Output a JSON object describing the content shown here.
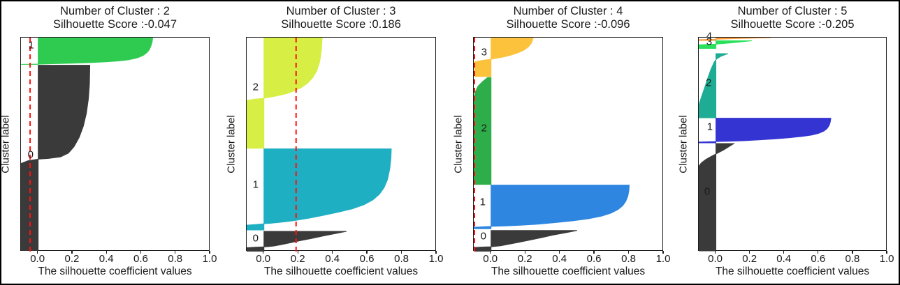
{
  "figure": {
    "background": "#ffffff",
    "frame_color": "#000000",
    "xlabel": "The silhouette coefficient values",
    "ylabel": "Cluster label",
    "xtick_labels": [
      "0.0",
      "0.2",
      "0.4",
      "0.6",
      "0.8",
      "1.0"
    ],
    "xtick_values": [
      0,
      0.2,
      0.4,
      0.6,
      0.8,
      1.0
    ],
    "xlim": [
      -0.1,
      1.0
    ],
    "score_line_color": "#ff1111",
    "text_color": "#1a1a1a"
  },
  "chart_data": [
    {
      "type": "area",
      "title_line1": "Number of Cluster : 2",
      "title_line2": "Silhouette Score :-0.047",
      "n_clusters": 2,
      "silhouette_score": -0.047,
      "score_line": -0.047,
      "clusters": [
        {
          "label": "1",
          "color": "#2ecb50",
          "y_range": [
            0.002,
            0.125
          ],
          "label_pos": {
            "v": -0.037,
            "f": 0.04
          },
          "profile": [
            [
              0.665,
              0
            ],
            [
              0.662,
              0.15
            ],
            [
              0.655,
              0.3
            ],
            [
              0.645,
              0.45
            ],
            [
              0.632,
              0.55
            ],
            [
              0.612,
              0.65
            ],
            [
              0.59,
              0.72
            ],
            [
              0.56,
              0.78
            ],
            [
              0.52,
              0.83
            ],
            [
              0.465,
              0.87
            ],
            [
              0.4,
              0.9
            ],
            [
              0.31,
              0.93
            ],
            [
              0.21,
              0.955
            ],
            [
              0.1,
              0.975
            ],
            [
              0.01,
              0.99
            ],
            [
              -0.05,
              0.995
            ],
            [
              -0.099,
              1
            ]
          ]
        },
        {
          "label": "0",
          "color": "#3a3a3a",
          "y_range": [
            0.129,
            0.995
          ],
          "label_pos": {
            "v": -0.04,
            "f": 0.5505
          },
          "profile": [
            [
              0.3,
              0
            ],
            [
              0.298,
              0.1
            ],
            [
              0.292,
              0.18
            ],
            [
              0.28,
              0.26
            ],
            [
              0.262,
              0.33
            ],
            [
              0.238,
              0.39
            ],
            [
              0.208,
              0.44
            ],
            [
              0.175,
              0.475
            ],
            [
              0.13,
              0.495
            ],
            [
              0.06,
              0.503
            ],
            [
              0,
              0.507
            ],
            [
              -0.06,
              0.516
            ],
            [
              -0.099,
              0.53
            ],
            [
              -0.099,
              1
            ]
          ]
        }
      ]
    },
    {
      "type": "area",
      "title_line1": "Number of Cluster : 3",
      "title_line2": "Silhouette Score :0.186",
      "n_clusters": 3,
      "silhouette_score": 0.186,
      "score_line": 0.186,
      "clusters": [
        {
          "label": "2",
          "color": "#d7ef45",
          "y_range": [
            0.002,
            0.517
          ],
          "label_pos": {
            "v": -0.044,
            "f": 0.2345
          },
          "profile": [
            [
              0.337,
              0
            ],
            [
              0.332,
              0.12
            ],
            [
              0.322,
              0.22
            ],
            [
              0.305,
              0.3
            ],
            [
              0.282,
              0.36
            ],
            [
              0.252,
              0.41
            ],
            [
              0.215,
              0.45
            ],
            [
              0.175,
              0.48
            ],
            [
              0.13,
              0.505
            ],
            [
              0.075,
              0.525
            ],
            [
              0.02,
              0.54
            ],
            [
              0,
              0.546
            ],
            [
              -0.06,
              0.556
            ],
            [
              -0.099,
              0.566
            ],
            [
              -0.099,
              1
            ]
          ]
        },
        {
          "label": "1",
          "color": "#1fafc3",
          "y_range": [
            0.52,
            0.899
          ],
          "label_pos": {
            "v": -0.044,
            "f": 0.6916
          },
          "profile": [
            [
              0.737,
              0
            ],
            [
              0.735,
              0.12
            ],
            [
              0.728,
              0.25
            ],
            [
              0.715,
              0.38
            ],
            [
              0.695,
              0.48
            ],
            [
              0.668,
              0.56
            ],
            [
              0.63,
              0.63
            ],
            [
              0.578,
              0.69
            ],
            [
              0.51,
              0.74
            ],
            [
              0.432,
              0.78
            ],
            [
              0.345,
              0.82
            ],
            [
              0.26,
              0.855
            ],
            [
              0.175,
              0.885
            ],
            [
              0.1,
              0.905
            ],
            [
              0.035,
              0.918
            ],
            [
              0,
              0.924
            ],
            [
              -0.05,
              0.933
            ],
            [
              -0.099,
              0.941
            ],
            [
              -0.099,
              1
            ]
          ]
        },
        {
          "label": "0",
          "color": "#3a3a3a",
          "y_range": [
            0.9055,
            0.9984
          ],
          "label_pos": {
            "v": -0.044,
            "f": 0.9414
          },
          "profile": [
            [
              0.478,
              0
            ],
            [
              0.42,
              0.1
            ],
            [
              0.35,
              0.22
            ],
            [
              0.28,
              0.35
            ],
            [
              0.21,
              0.47
            ],
            [
              0.15,
              0.58
            ],
            [
              0.1,
              0.67
            ],
            [
              0.055,
              0.74
            ],
            [
              0.02,
              0.77
            ],
            [
              0,
              0.782
            ],
            [
              -0.05,
              0.8
            ],
            [
              -0.099,
              0.822
            ],
            [
              -0.099,
              1
            ]
          ]
        }
      ]
    },
    {
      "type": "area",
      "title_line1": "Number of Cluster : 4",
      "title_line2": "Silhouette Score :-0.096",
      "n_clusters": 4,
      "silhouette_score": -0.096,
      "score_line": -0.096,
      "clusters": [
        {
          "label": "3",
          "color": "#fcc23c",
          "y_range": [
            0.002,
            0.1814
          ],
          "label_pos": {
            "v": -0.036,
            "f": 0.0726
          },
          "profile": [
            [
              0.244,
              0
            ],
            [
              0.235,
              0.12
            ],
            [
              0.218,
              0.22
            ],
            [
              0.192,
              0.31
            ],
            [
              0.158,
              0.38
            ],
            [
              0.118,
              0.44
            ],
            [
              0.075,
              0.49
            ],
            [
              0.038,
              0.52
            ],
            [
              0,
              0.552
            ],
            [
              -0.05,
              0.58
            ],
            [
              -0.095,
              0.62
            ],
            [
              -0.095,
              1
            ]
          ]
        },
        {
          "label": "2",
          "color": "#2eae4a",
          "y_range": [
            0.1866,
            0.6862
          ],
          "label_pos": {
            "v": -0.036,
            "f": 0.4257
          },
          "profile": [
            [
              -0.02,
              0
            ],
            [
              -0.05,
              0.04
            ],
            [
              -0.075,
              0.08
            ],
            [
              -0.09,
              0.13
            ],
            [
              -0.099,
              0.18
            ],
            [
              -0.099,
              1
            ]
          ]
        },
        {
          "label": "1",
          "color": "#2e86e0",
          "y_range": [
            0.6895,
            0.8935
          ],
          "label_pos": {
            "v": -0.044,
            "f": 0.773
          },
          "profile": [
            [
              0.8,
              0
            ],
            [
              0.798,
              0.12
            ],
            [
              0.792,
              0.25
            ],
            [
              0.78,
              0.37
            ],
            [
              0.762,
              0.47
            ],
            [
              0.735,
              0.56
            ],
            [
              0.695,
              0.64
            ],
            [
              0.64,
              0.71
            ],
            [
              0.565,
              0.77
            ],
            [
              0.47,
              0.82
            ],
            [
              0.37,
              0.86
            ],
            [
              0.27,
              0.895
            ],
            [
              0.17,
              0.92
            ],
            [
              0.08,
              0.935
            ],
            [
              0,
              0.946
            ],
            [
              -0.05,
              0.955
            ],
            [
              -0.099,
              0.965
            ],
            [
              -0.099,
              1
            ]
          ]
        },
        {
          "label": "0",
          "color": "#3a3a3a",
          "y_range": [
            0.9013,
            0.9984
          ],
          "label_pos": {
            "v": -0.04,
            "f": 0.9306
          },
          "profile": [
            [
              0.498,
              0
            ],
            [
              0.44,
              0.1
            ],
            [
              0.36,
              0.22
            ],
            [
              0.29,
              0.35
            ],
            [
              0.22,
              0.47
            ],
            [
              0.155,
              0.58
            ],
            [
              0.1,
              0.67
            ],
            [
              0.055,
              0.74
            ],
            [
              0.02,
              0.77
            ],
            [
              0,
              0.786
            ],
            [
              -0.05,
              0.8
            ],
            [
              -0.099,
              0.822
            ],
            [
              -0.099,
              1
            ]
          ]
        }
      ]
    },
    {
      "type": "area",
      "title_line1": "Number of Cluster : 5",
      "title_line2": "Silhouette Score :-0.205",
      "n_clusters": 5,
      "silhouette_score": -0.205,
      "score_line": -0.205,
      "clusters": [
        {
          "label": "4",
          "color": "#f99d38",
          "y_range": [
            0.0,
            0.013
          ],
          "label_pos": {
            "v": -0.035,
            "f": -0.003
          },
          "profile": [
            [
              0.32,
              0
            ],
            [
              0.21,
              0.2
            ],
            [
              0.12,
              0.35
            ],
            [
              0.04,
              0.5
            ],
            [
              0,
              0.6
            ],
            [
              -0.099,
              0.72
            ],
            [
              -0.099,
              1
            ]
          ]
        },
        {
          "label": "3",
          "color": "#2ae05c",
          "y_range": [
            0.0147,
            0.0505
          ],
          "label_pos": {
            "v": -0.035,
            "f": 0.0228
          },
          "profile": [
            [
              0.21,
              0
            ],
            [
              0.145,
              0.15
            ],
            [
              0.085,
              0.28
            ],
            [
              0.03,
              0.38
            ],
            [
              0,
              0.44
            ],
            [
              -0.099,
              0.53
            ],
            [
              -0.099,
              1
            ]
          ]
        },
        {
          "label": "2",
          "color": "#1ead94",
          "y_range": [
            0.0749,
            0.3746
          ],
          "label_pos": {
            "v": -0.038,
            "f": 0.216
          },
          "profile": [
            [
              0.07,
              0
            ],
            [
              0.03,
              0.04
            ],
            [
              0.005,
              0.08
            ],
            [
              -0.01,
              0.13
            ],
            [
              -0.03,
              0.25
            ],
            [
              -0.05,
              0.4
            ],
            [
              -0.068,
              0.55
            ],
            [
              -0.085,
              0.68
            ],
            [
              -0.097,
              0.78
            ],
            [
              -0.099,
              0.82
            ],
            [
              -0.099,
              1
            ]
          ]
        },
        {
          "label": "1",
          "color": "#3434d3",
          "y_range": [
            0.3768,
            0.4919
          ],
          "label_pos": {
            "v": -0.031,
            "f": 0.42
          },
          "profile": [
            [
              0.67,
              0
            ],
            [
              0.667,
              0.15
            ],
            [
              0.66,
              0.3
            ],
            [
              0.648,
              0.42
            ],
            [
              0.63,
              0.52
            ],
            [
              0.6,
              0.61
            ],
            [
              0.56,
              0.68
            ],
            [
              0.5,
              0.74
            ],
            [
              0.43,
              0.79
            ],
            [
              0.34,
              0.84
            ],
            [
              0.25,
              0.88
            ],
            [
              0.16,
              0.915
            ],
            [
              0.07,
              0.935
            ],
            [
              0,
              0.947
            ],
            [
              -0.05,
              0.957
            ],
            [
              -0.099,
              0.966
            ],
            [
              -0.099,
              1
            ]
          ]
        },
        {
          "label": "0",
          "color": "#3a3a3a",
          "y_range": [
            0.4951,
            0.9967
          ],
          "label_pos": {
            "v": -0.047,
            "f": 0.723
          },
          "profile": [
            [
              0.105,
              0
            ],
            [
              0.075,
              0.03
            ],
            [
              0.045,
              0.06
            ],
            [
              0.015,
              0.085
            ],
            [
              0,
              0.097
            ],
            [
              -0.03,
              0.122
            ],
            [
              -0.06,
              0.15
            ],
            [
              -0.085,
              0.18
            ],
            [
              -0.099,
              0.21
            ],
            [
              -0.099,
              1
            ]
          ]
        }
      ]
    }
  ]
}
